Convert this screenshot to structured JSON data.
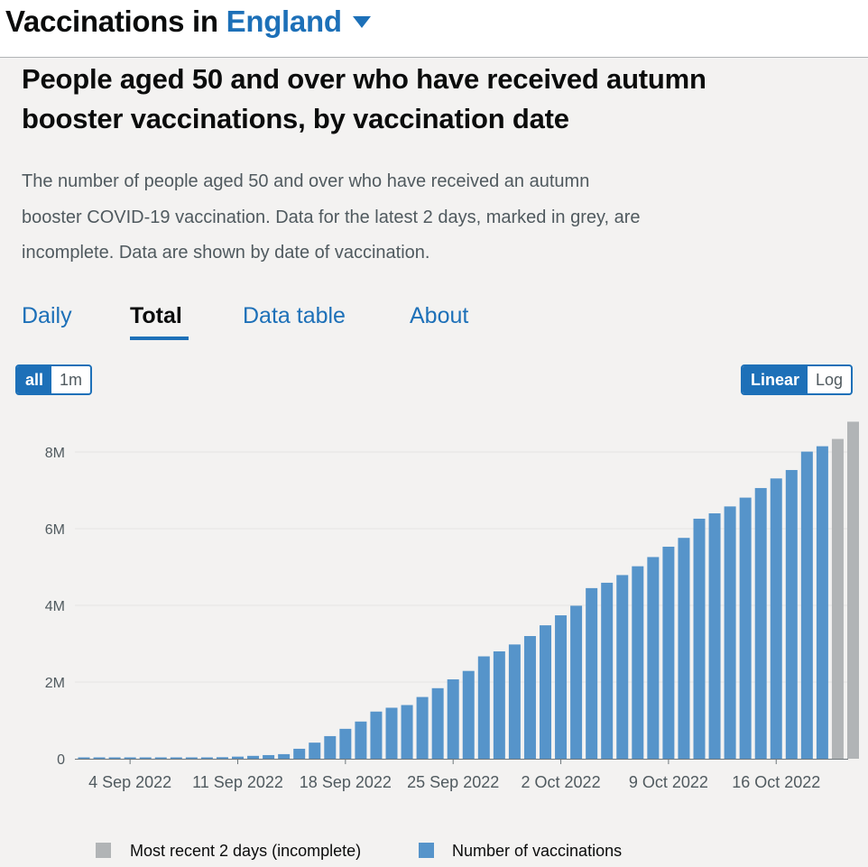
{
  "header": {
    "title_prefix": "Vaccinations in",
    "area": "England",
    "caret_icon": "caret-down-icon"
  },
  "card": {
    "title_line1": "People aged 50 and over who have received autumn",
    "title_line2": "booster vaccinations, by vaccination date",
    "desc_line1": "The number of people aged 50 and over who have received an autumn",
    "desc_line2": "booster COVID-19 vaccination. Data for the latest 2 days, marked in grey, are",
    "desc_line3": "incomplete. Data are shown by date of vaccination."
  },
  "tabs": [
    {
      "label": "Daily",
      "active": false
    },
    {
      "label": "Total",
      "active": true
    },
    {
      "label": "Data table",
      "active": false
    },
    {
      "label": "About",
      "active": false
    }
  ],
  "range_toggle": {
    "options": [
      "all",
      "1m"
    ],
    "selected": "all"
  },
  "scale_toggle": {
    "options": [
      "Linear",
      "Log"
    ],
    "selected": "Linear"
  },
  "colors": {
    "complete": "#5694ca",
    "incomplete": "#b1b4b6",
    "accent": "#1d70b8"
  },
  "legend": {
    "incomplete": "Most recent 2 days (incomplete)",
    "complete": "Number of vaccinations"
  },
  "chart_data": {
    "type": "bar",
    "x_start": "2022-09-01",
    "categories": [
      "1 Sep 2022",
      "2 Sep 2022",
      "3 Sep 2022",
      "4 Sep 2022",
      "5 Sep 2022",
      "6 Sep 2022",
      "7 Sep 2022",
      "8 Sep 2022",
      "9 Sep 2022",
      "10 Sep 2022",
      "11 Sep 2022",
      "12 Sep 2022",
      "13 Sep 2022",
      "14 Sep 2022",
      "15 Sep 2022",
      "16 Sep 2022",
      "17 Sep 2022",
      "18 Sep 2022",
      "19 Sep 2022",
      "20 Sep 2022",
      "21 Sep 2022",
      "22 Sep 2022",
      "23 Sep 2022",
      "24 Sep 2022",
      "25 Sep 2022",
      "26 Sep 2022",
      "27 Sep 2022",
      "28 Sep 2022",
      "29 Sep 2022",
      "30 Sep 2022",
      "1 Oct 2022",
      "2 Oct 2022",
      "3 Oct 2022",
      "4 Oct 2022",
      "5 Oct 2022",
      "6 Oct 2022",
      "7 Oct 2022",
      "8 Oct 2022",
      "9 Oct 2022",
      "10 Oct 2022",
      "11 Oct 2022",
      "12 Oct 2022",
      "13 Oct 2022",
      "14 Oct 2022",
      "15 Oct 2022",
      "16 Oct 2022",
      "17 Oct 2022",
      "18 Oct 2022",
      "19 Oct 2022",
      "20 Oct 2022",
      "21 Oct 2022"
    ],
    "values": [
      10000,
      15000,
      18000,
      20000,
      22000,
      25000,
      28000,
      32000,
      35000,
      40000,
      55000,
      75000,
      95000,
      120000,
      260000,
      420000,
      590000,
      780000,
      970000,
      1230000,
      1330000,
      1400000,
      1610000,
      1840000,
      2070000,
      2290000,
      2670000,
      2800000,
      2980000,
      3200000,
      3480000,
      3740000,
      3990000,
      4450000,
      4590000,
      4790000,
      5020000,
      5260000,
      5530000,
      5760000,
      6260000,
      6400000,
      6580000,
      6810000,
      7060000,
      7310000,
      7530000,
      8010000,
      8150000,
      8340000,
      8790000
    ],
    "incomplete_count": 2,
    "incomplete_values_note": "last two bars grey",
    "x_ticks": [
      "4 Sep 2022",
      "11 Sep 2022",
      "18 Sep 2022",
      "25 Sep 2022",
      "2 Oct 2022",
      "9 Oct 2022",
      "16 Oct 2022"
    ],
    "y_ticks": [
      0,
      2000000,
      4000000,
      6000000,
      8000000
    ],
    "y_tick_labels": [
      "0",
      "2M",
      "4M",
      "6M",
      "8M"
    ],
    "ylim": [
      0,
      9000000
    ],
    "grid": true,
    "title": "",
    "xlabel": "",
    "ylabel": ""
  }
}
